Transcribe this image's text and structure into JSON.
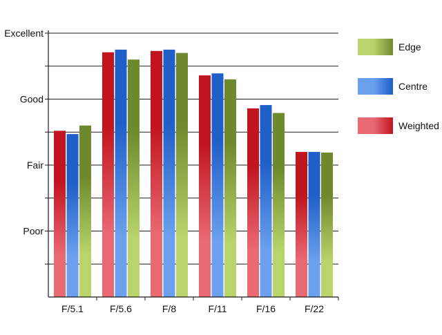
{
  "chart_data": {
    "type": "bar",
    "categories": [
      "F/5.1",
      "F/5.6",
      "F/8",
      "F/11",
      "F/16",
      "F/22"
    ],
    "y_tick_labels": [
      {
        "value": 4,
        "label": "Excellent"
      },
      {
        "value": 3,
        "label": "Good"
      },
      {
        "value": 2,
        "label": "Fair"
      },
      {
        "value": 1,
        "label": "Poor"
      }
    ],
    "ylim": [
      0,
      4
    ],
    "grid_step": 0.5,
    "grid": true,
    "legend_position": "right",
    "series": [
      {
        "name": "Weighted",
        "values": [
          2.52,
          3.71,
          3.73,
          3.36,
          2.86,
          2.2
        ],
        "color": "#c0141e",
        "color_light": "#ea6a74"
      },
      {
        "name": "Centre",
        "values": [
          2.47,
          3.75,
          3.75,
          3.39,
          2.91,
          2.2
        ],
        "color": "#1f5fc9",
        "color_light": "#6aa0ee"
      },
      {
        "name": "Edge",
        "values": [
          2.6,
          3.6,
          3.7,
          3.3,
          2.79,
          2.19
        ],
        "color": "#6f8a2e",
        "color_light": "#b8d46a"
      }
    ],
    "legend_order": [
      "Edge",
      "Centre",
      "Weighted"
    ]
  }
}
